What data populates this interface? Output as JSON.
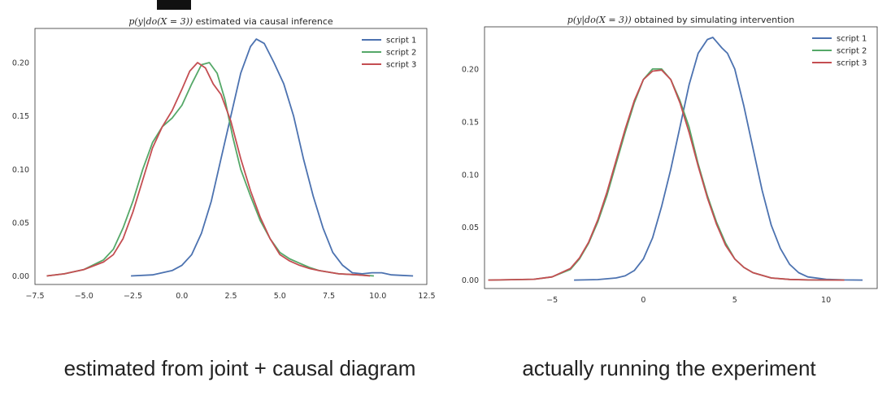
{
  "captions": {
    "left": "estimated from joint + causal diagram",
    "right": "actually running the experiment"
  },
  "chart_data": [
    {
      "type": "line",
      "title": "p(y|do(X = 3)) estimated via causal inference",
      "title_parts": {
        "math": "p(y|do(X = 3))",
        "rest": " estimated via causal inference"
      },
      "xlabel": "",
      "ylabel": "",
      "xlim": [
        -7.5,
        12.5
      ],
      "ylim": [
        -0.008,
        0.232
      ],
      "xticks": [
        -7.5,
        -5.0,
        -2.5,
        0.0,
        2.5,
        5.0,
        7.5,
        10.0,
        12.5
      ],
      "xtick_labels": [
        "−7.5",
        "−5.0",
        "−2.5",
        "0.0",
        "2.5",
        "5.0",
        "7.5",
        "10.0",
        "12.5"
      ],
      "yticks": [
        0.0,
        0.05,
        0.1,
        0.15,
        0.2
      ],
      "ytick_labels": [
        "0.00",
        "0.05",
        "0.10",
        "0.15",
        "0.20"
      ],
      "grid": false,
      "legend": "top-right",
      "series": [
        {
          "name": "script 1",
          "color": "#4c72b0",
          "x": [
            -2.6,
            -1.5,
            -0.5,
            0.0,
            0.5,
            1.0,
            1.5,
            2.0,
            2.5,
            3.0,
            3.5,
            3.8,
            4.2,
            4.7,
            5.2,
            5.7,
            6.2,
            6.7,
            7.2,
            7.7,
            8.2,
            8.7,
            9.2,
            9.7,
            10.2,
            10.7,
            11.2,
            11.8
          ],
          "y": [
            0.0,
            0.001,
            0.005,
            0.01,
            0.02,
            0.04,
            0.07,
            0.11,
            0.15,
            0.19,
            0.215,
            0.222,
            0.218,
            0.2,
            0.18,
            0.15,
            0.11,
            0.075,
            0.045,
            0.022,
            0.01,
            0.003,
            0.002,
            0.003,
            0.003,
            0.001,
            0.0005,
            0.0
          ]
        },
        {
          "name": "script 2",
          "color": "#55a868",
          "x": [
            -6.9,
            -6.0,
            -5.0,
            -4.0,
            -3.5,
            -3.0,
            -2.5,
            -2.0,
            -1.5,
            -1.0,
            -0.5,
            0.0,
            0.5,
            1.0,
            1.4,
            1.8,
            2.2,
            2.6,
            3.0,
            3.5,
            4.0,
            4.5,
            5.0,
            5.5,
            6.0,
            6.5,
            7.0,
            8.0,
            9.0,
            9.8
          ],
          "y": [
            0.0,
            0.002,
            0.006,
            0.015,
            0.025,
            0.045,
            0.07,
            0.1,
            0.125,
            0.14,
            0.148,
            0.16,
            0.18,
            0.198,
            0.2,
            0.19,
            0.165,
            0.13,
            0.1,
            0.075,
            0.052,
            0.035,
            0.022,
            0.016,
            0.012,
            0.008,
            0.005,
            0.002,
            0.001,
            0.0
          ]
        },
        {
          "name": "script 3",
          "color": "#c44e52",
          "x": [
            -6.9,
            -6.0,
            -5.0,
            -4.0,
            -3.5,
            -3.0,
            -2.5,
            -2.0,
            -1.5,
            -1.0,
            -0.5,
            0.0,
            0.4,
            0.8,
            1.2,
            1.6,
            2.0,
            2.5,
            3.0,
            3.5,
            4.0,
            4.5,
            5.0,
            5.5,
            6.0,
            6.5,
            7.0,
            8.0,
            9.0,
            9.6
          ],
          "y": [
            0.0,
            0.002,
            0.006,
            0.013,
            0.02,
            0.035,
            0.06,
            0.09,
            0.12,
            0.14,
            0.155,
            0.175,
            0.192,
            0.2,
            0.195,
            0.18,
            0.17,
            0.145,
            0.11,
            0.08,
            0.055,
            0.035,
            0.02,
            0.014,
            0.01,
            0.007,
            0.005,
            0.002,
            0.001,
            0.0
          ]
        }
      ]
    },
    {
      "type": "line",
      "title": "p(y|do(X = 3)) obtained by simulating intervention",
      "title_parts": {
        "math": "p(y|do(X = 3))",
        "rest": " obtained by simulating intervention"
      },
      "xlabel": "",
      "ylabel": "",
      "xlim": [
        -8.7,
        12.8
      ],
      "ylim": [
        -0.008,
        0.24
      ],
      "xticks": [
        -5,
        0,
        5,
        10
      ],
      "xtick_labels": [
        "−5",
        "0",
        "5",
        "10"
      ],
      "yticks": [
        0.0,
        0.05,
        0.1,
        0.15,
        0.2
      ],
      "ytick_labels": [
        "0.00",
        "0.05",
        "0.10",
        "0.15",
        "0.20"
      ],
      "grid": false,
      "legend": "top-right",
      "series": [
        {
          "name": "script 1",
          "color": "#4c72b0",
          "x": [
            -3.8,
            -2.5,
            -1.5,
            -1.0,
            -0.5,
            0.0,
            0.5,
            1.0,
            1.5,
            2.0,
            2.5,
            3.0,
            3.5,
            3.8,
            4.0,
            4.3,
            4.6,
            5.0,
            5.5,
            6.0,
            6.5,
            7.0,
            7.5,
            8.0,
            8.5,
            9.0,
            10.0,
            11.0,
            12.0
          ],
          "y": [
            0.0,
            0.0005,
            0.002,
            0.004,
            0.009,
            0.02,
            0.04,
            0.07,
            0.105,
            0.145,
            0.185,
            0.215,
            0.228,
            0.23,
            0.226,
            0.22,
            0.215,
            0.2,
            0.165,
            0.125,
            0.085,
            0.052,
            0.03,
            0.015,
            0.007,
            0.003,
            0.0008,
            0.0002,
            0.0
          ]
        },
        {
          "name": "script 2",
          "color": "#55a868",
          "x": [
            -8.5,
            -6.0,
            -5.0,
            -4.0,
            -3.5,
            -3.0,
            -2.5,
            -2.0,
            -1.5,
            -1.0,
            -0.5,
            0.0,
            0.5,
            1.0,
            1.5,
            2.0,
            2.5,
            3.0,
            3.5,
            4.0,
            4.5,
            5.0,
            5.5,
            6.0,
            7.0,
            8.0,
            9.0,
            10.0,
            11.0
          ],
          "y": [
            0.0,
            0.0008,
            0.003,
            0.01,
            0.02,
            0.035,
            0.055,
            0.08,
            0.11,
            0.14,
            0.168,
            0.19,
            0.2,
            0.2,
            0.19,
            0.17,
            0.145,
            0.11,
            0.08,
            0.055,
            0.035,
            0.02,
            0.012,
            0.007,
            0.002,
            0.0006,
            0.0002,
            0.0001,
            0.0
          ]
        },
        {
          "name": "script 3",
          "color": "#c44e52",
          "x": [
            -8.5,
            -6.0,
            -5.0,
            -4.0,
            -3.5,
            -3.0,
            -2.5,
            -2.0,
            -1.5,
            -1.0,
            -0.5,
            0.0,
            0.5,
            1.0,
            1.5,
            2.0,
            2.5,
            3.0,
            3.5,
            4.0,
            4.5,
            5.0,
            5.5,
            6.0,
            7.0,
            8.0,
            9.0,
            10.0,
            11.0
          ],
          "y": [
            0.0,
            0.0008,
            0.003,
            0.011,
            0.021,
            0.036,
            0.057,
            0.083,
            0.113,
            0.143,
            0.17,
            0.19,
            0.198,
            0.199,
            0.19,
            0.168,
            0.14,
            0.108,
            0.078,
            0.053,
            0.033,
            0.02,
            0.012,
            0.007,
            0.002,
            0.0006,
            0.0002,
            0.0001,
            0.0
          ]
        }
      ]
    }
  ]
}
